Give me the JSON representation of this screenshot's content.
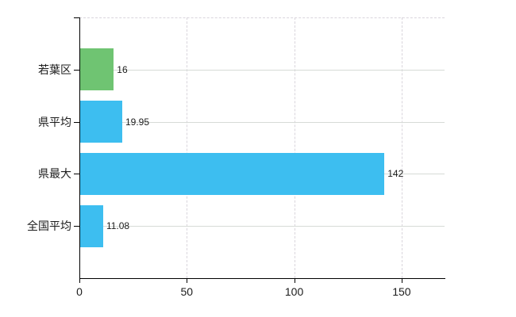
{
  "chart_data": {
    "type": "bar",
    "orientation": "horizontal",
    "title": "",
    "xlabel": "",
    "ylabel": "",
    "categories": [
      "若葉区",
      "県平均",
      "県最大",
      "全国平均"
    ],
    "values": [
      16,
      19.95,
      142,
      11.08
    ],
    "value_labels": [
      "16",
      "19.95",
      "142",
      "11.08"
    ],
    "bar_colors": [
      "#6fc472",
      "#3dbef0",
      "#3dbef0",
      "#3dbef0"
    ],
    "xlim": [
      0,
      170
    ],
    "x_ticks": [
      0,
      50,
      100,
      150
    ],
    "x_tick_labels": [
      "0",
      "50",
      "100",
      "150"
    ],
    "legend": "none",
    "grid": {
      "horizontal": "solid",
      "vertical": "dashed",
      "top_border": "dashed"
    },
    "colors": {
      "background": "#ffffff",
      "axis": "#000000",
      "grid_horizontal": "#d6dbd6",
      "grid_vertical": "#d9d5dc",
      "text": "#1c1c1c"
    }
  }
}
